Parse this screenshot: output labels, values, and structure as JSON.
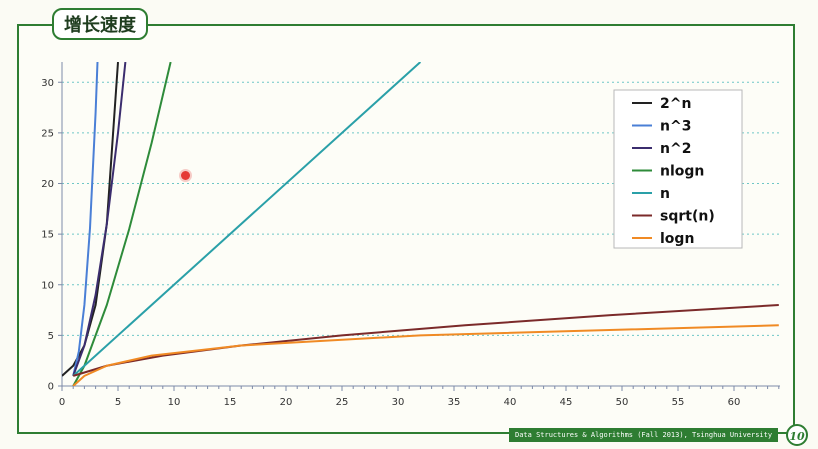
{
  "slide": {
    "title": "增长速度",
    "footer": "Data Structures & Algorithms (Fall 2013), Tsinghua University",
    "page_number": "10"
  },
  "colors": {
    "frame": "#2e7d32",
    "gridline": "#6fc7c7"
  },
  "chart_data": {
    "type": "line",
    "title": "",
    "xlabel": "",
    "ylabel": "",
    "xlim": [
      0,
      65
    ],
    "ylim": [
      0,
      32
    ],
    "x_ticks": [
      0,
      5,
      10,
      15,
      20,
      25,
      30,
      35,
      40,
      45,
      50,
      55,
      60
    ],
    "y_ticks": [
      0,
      5,
      10,
      15,
      20,
      25,
      30
    ],
    "grid": "horizontal dotted",
    "legend_position": "top-right",
    "series": [
      {
        "name": "2^n",
        "color": "#222222",
        "x": [
          0,
          1,
          2,
          3,
          4,
          5
        ],
        "y": [
          1,
          2,
          4,
          8,
          16,
          32
        ]
      },
      {
        "name": "n^3",
        "color": "#4a7fd6",
        "x": [
          1,
          1.5,
          2,
          2.5,
          3,
          3.17
        ],
        "y": [
          1,
          3.4,
          8,
          15.6,
          27,
          32
        ]
      },
      {
        "name": "n^2",
        "color": "#3b2d6e",
        "x": [
          1,
          2,
          3,
          4,
          5,
          5.66
        ],
        "y": [
          1,
          4,
          9,
          16,
          25,
          32
        ]
      },
      {
        "name": "nlogn",
        "color": "#2e8b3a",
        "x": [
          1,
          2,
          4,
          6,
          8,
          9.7
        ],
        "y": [
          0,
          2,
          8,
          15.5,
          24,
          32
        ]
      },
      {
        "name": "n",
        "color": "#2aa0a8",
        "x": [
          1,
          32
        ],
        "y": [
          1,
          32
        ]
      },
      {
        "name": "sqrt(n)",
        "color": "#7b2a2a",
        "x": [
          1,
          4,
          9,
          16,
          25,
          36,
          49,
          64
        ],
        "y": [
          1,
          2,
          3,
          4,
          5,
          6,
          7,
          8
        ]
      },
      {
        "name": "logn",
        "color": "#f08a24",
        "x": [
          1,
          2,
          4,
          8,
          16,
          32,
          64
        ],
        "y": [
          0,
          1,
          2,
          3,
          4,
          5,
          6
        ]
      }
    ]
  }
}
